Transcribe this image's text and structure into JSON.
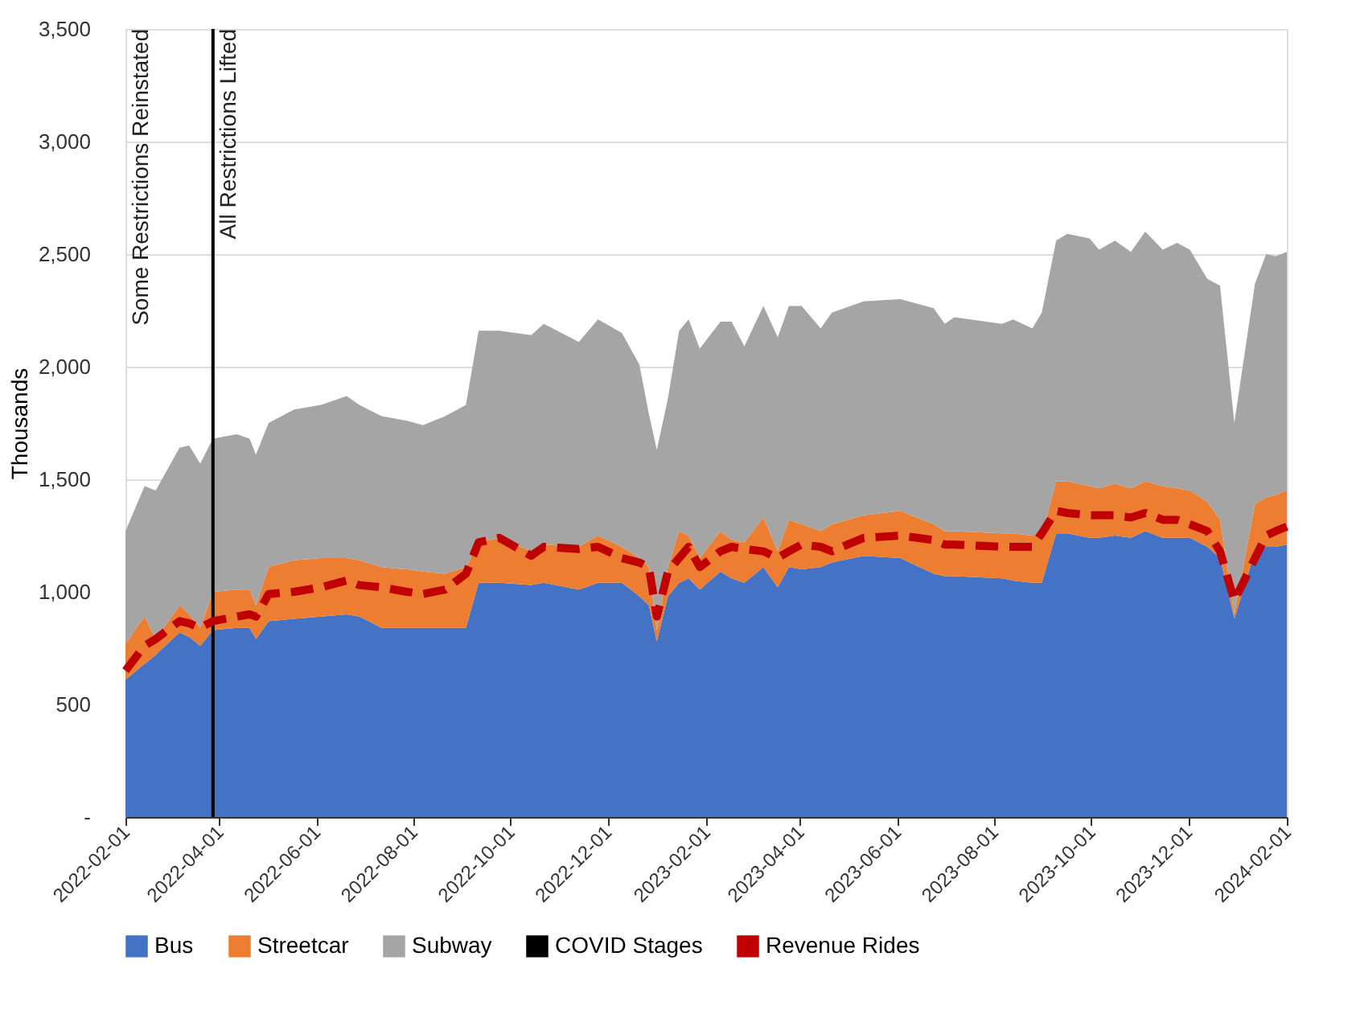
{
  "chart_data": {
    "type": "area",
    "stacked": true,
    "ylabel": "Thousands",
    "x": [
      "2022-02-01",
      "2022-02-13",
      "2022-02-20",
      "2022-03-07",
      "2022-03-13",
      "2022-03-20",
      "2022-03-28",
      "2022-04-12",
      "2022-04-20",
      "2022-04-24",
      "2022-05-02",
      "2022-05-18",
      "2022-06-04",
      "2022-06-20",
      "2022-06-28",
      "2022-07-12",
      "2022-07-28",
      "2022-08-07",
      "2022-08-21",
      "2022-09-03",
      "2022-09-11",
      "2022-09-24",
      "2022-10-14",
      "2022-10-22",
      "2022-11-13",
      "2022-11-25",
      "2022-12-10",
      "2022-12-21",
      "2022-12-27",
      "2023-01-01",
      "2023-01-08",
      "2023-01-15",
      "2023-01-21",
      "2023-01-28",
      "2023-02-10",
      "2023-02-17",
      "2023-02-25",
      "2023-03-09",
      "2023-03-18",
      "2023-03-25",
      "2023-04-02",
      "2023-04-14",
      "2023-04-21",
      "2023-05-11",
      "2023-06-03",
      "2023-06-24",
      "2023-07-01",
      "2023-07-07",
      "2023-08-06",
      "2023-08-13",
      "2023-08-25",
      "2023-08-31",
      "2023-09-09",
      "2023-09-16",
      "2023-09-30",
      "2023-10-06",
      "2023-10-16",
      "2023-10-26",
      "2023-11-04",
      "2023-11-15",
      "2023-11-24",
      "2023-12-02",
      "2023-12-13",
      "2023-12-21",
      "2023-12-30",
      "2024-01-12",
      "2024-01-19",
      "2024-01-25",
      "2024-02-01"
    ],
    "series": [
      {
        "name": "Bus",
        "color": "#4472c4",
        "values": [
          610,
          680,
          720,
          820,
          800,
          760,
          830,
          840,
          840,
          790,
          870,
          880,
          890,
          900,
          890,
          840,
          840,
          840,
          840,
          840,
          1040,
          1040,
          1030,
          1040,
          1010,
          1040,
          1040,
          980,
          940,
          780,
          980,
          1040,
          1060,
          1010,
          1090,
          1060,
          1040,
          1110,
          1020,
          1110,
          1100,
          1110,
          1130,
          1160,
          1150,
          1080,
          1070,
          1070,
          1060,
          1050,
          1040,
          1040,
          1260,
          1260,
          1240,
          1240,
          1250,
          1240,
          1270,
          1240,
          1240,
          1240,
          1200,
          1150,
          880,
          1180,
          1200,
          1200,
          1210
        ]
      },
      {
        "name": "Streetcar",
        "color": "#ed7d31",
        "values": [
          160,
          210,
          70,
          120,
          100,
          80,
          170,
          170,
          170,
          150,
          240,
          260,
          260,
          250,
          250,
          270,
          260,
          250,
          240,
          270,
          180,
          200,
          150,
          170,
          190,
          210,
          160,
          170,
          170,
          50,
          130,
          230,
          190,
          140,
          180,
          170,
          180,
          220,
          160,
          210,
          200,
          160,
          170,
          180,
          210,
          220,
          200,
          200,
          200,
          210,
          210,
          210,
          230,
          230,
          230,
          220,
          230,
          220,
          220,
          230,
          220,
          210,
          200,
          170,
          20,
          210,
          220,
          230,
          240
        ]
      },
      {
        "name": "Subway",
        "color": "#a5a5a5",
        "values": [
          500,
          580,
          660,
          700,
          750,
          730,
          680,
          690,
          670,
          670,
          640,
          670,
          680,
          720,
          690,
          670,
          660,
          650,
          700,
          720,
          940,
          920,
          960,
          980,
          910,
          960,
          950,
          860,
          680,
          800,
          750,
          890,
          960,
          930,
          930,
          970,
          870,
          940,
          950,
          950,
          970,
          900,
          940,
          950,
          940,
          960,
          920,
          950,
          930,
          950,
          920,
          990,
          1070,
          1100,
          1100,
          1060,
          1080,
          1050,
          1110,
          1050,
          1090,
          1070,
          990,
          1040,
          850,
          980,
          1080,
          1060,
          1060
        ]
      },
      {
        "name": "COVID Stages",
        "type": "line",
        "color": "#000000",
        "x": [
          "2022-03-28",
          "2022-03-28"
        ],
        "values": [
          0,
          3500
        ]
      },
      {
        "name": "Revenue Rides",
        "type": "line",
        "color": "#c00000",
        "line_style": "dashed",
        "values": [
          650,
          760,
          790,
          870,
          860,
          840,
          870,
          890,
          900,
          890,
          990,
          1000,
          1020,
          1050,
          1030,
          1020,
          1000,
          990,
          1010,
          1080,
          1220,
          1240,
          1160,
          1200,
          1190,
          1200,
          1150,
          1130,
          1110,
          890,
          1090,
          1150,
          1200,
          1110,
          1180,
          1200,
          1190,
          1180,
          1150,
          1180,
          1210,
          1200,
          1180,
          1240,
          1250,
          1230,
          1210,
          1210,
          1200,
          1200,
          1200,
          1260,
          1360,
          1350,
          1340,
          1340,
          1340,
          1330,
          1350,
          1320,
          1320,
          1300,
          1270,
          1180,
          960,
          1150,
          1250,
          1270,
          1290
        ]
      }
    ],
    "annotations": [
      "Some Restrictions Reinstated",
      {
        "text": "All Restrictions Lifted",
        "x": "2022-03-28",
        "y": 3500
      }
    ],
    "xlim": [
      "2022-02-01",
      "2024-02-01"
    ],
    "xticks": [
      "2022-02-01",
      "2022-04-01",
      "2022-06-01",
      "2022-08-01",
      "2022-10-01",
      "2022-12-01",
      "2023-02-01",
      "2023-04-01",
      "2023-06-01",
      "2023-08-01",
      "2023-10-01",
      "2023-12-01",
      "2024-02-01"
    ],
    "ylim": [
      0,
      3500
    ],
    "yticks": [
      {
        "value": 0,
        "label": "-"
      },
      500,
      {
        "value": 1000,
        "label": "1,000"
      },
      {
        "value": 1500,
        "label": "1,500"
      },
      {
        "value": 2000,
        "label": "2,000"
      },
      {
        "value": 2500,
        "label": "2,500"
      },
      {
        "value": 3000,
        "label": "3,000"
      },
      {
        "value": 3500,
        "label": "3,500"
      }
    ],
    "grid": "y",
    "legend": "bottom"
  }
}
